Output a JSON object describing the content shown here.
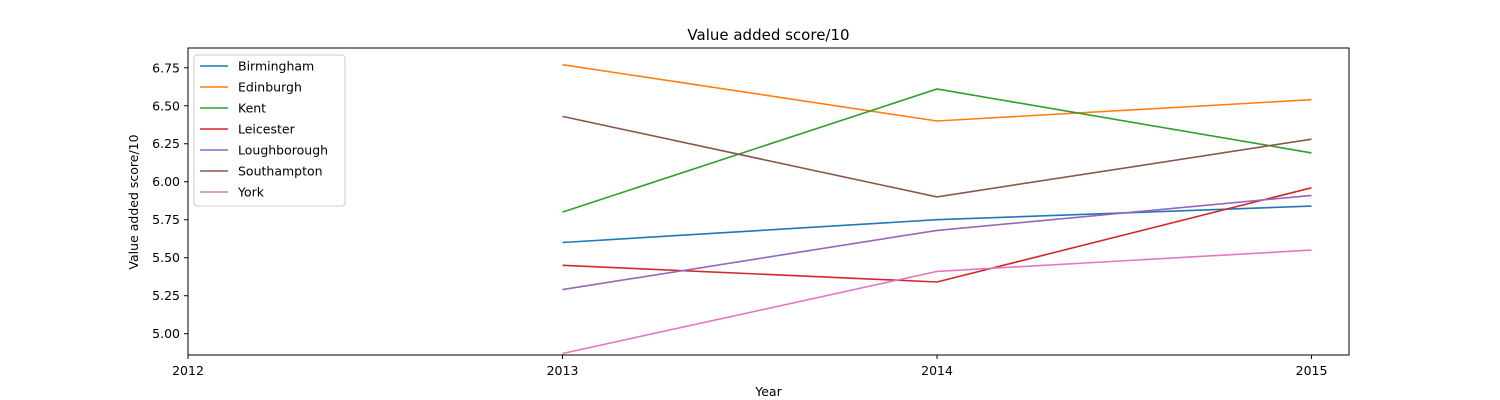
{
  "chart_data": {
    "type": "line",
    "title": "Value added score/10",
    "xlabel": "Year",
    "ylabel": "Value added score/10",
    "xlim": [
      2012,
      2015.1
    ],
    "ylim": [
      4.86,
      6.88
    ],
    "x_ticks": [
      2012,
      2013,
      2014,
      2015
    ],
    "y_ticks": [
      5.0,
      5.25,
      5.5,
      5.75,
      6.0,
      6.25,
      6.5,
      6.75
    ],
    "x_tick_labels": [
      "2012",
      "2013",
      "2014",
      "2015"
    ],
    "y_tick_labels": [
      "5.00",
      "5.25",
      "5.50",
      "5.75",
      "6.00",
      "6.25",
      "6.50",
      "6.75"
    ],
    "x": [
      2013,
      2014,
      2015
    ],
    "legend_position": "upper-left",
    "grid": false,
    "series": [
      {
        "name": "Birmingham",
        "color": "#1f77b4",
        "values": [
          5.6,
          5.75,
          5.84
        ]
      },
      {
        "name": "Edinburgh",
        "color": "#ff7f0e",
        "values": [
          6.77,
          6.4,
          6.54
        ]
      },
      {
        "name": "Kent",
        "color": "#2ca02c",
        "values": [
          5.8,
          6.61,
          6.19
        ]
      },
      {
        "name": "Leicester",
        "color": "#d62728",
        "values": [
          5.45,
          5.34,
          5.96
        ]
      },
      {
        "name": "Loughborough",
        "color": "#9467bd",
        "values": [
          5.29,
          5.68,
          5.91
        ]
      },
      {
        "name": "Southampton",
        "color": "#8c564b",
        "values": [
          6.43,
          5.9,
          6.28
        ]
      },
      {
        "name": "York",
        "color": "#e377c2",
        "values": [
          4.87,
          5.41,
          5.55
        ]
      }
    ]
  }
}
